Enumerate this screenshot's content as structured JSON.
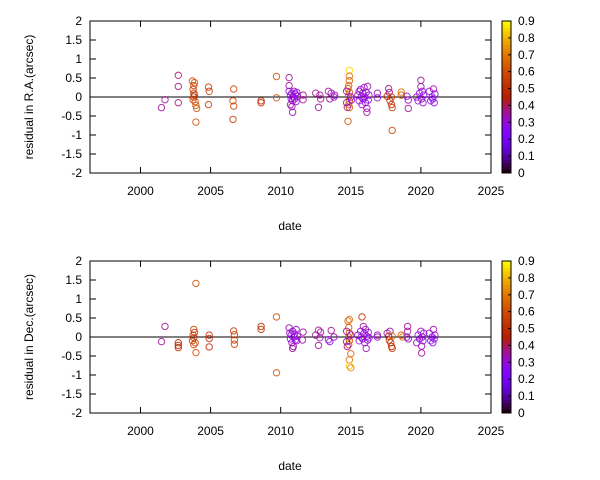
{
  "chart_data": [
    {
      "type": "scatter",
      "xlabel": "date",
      "ylabel": "residual in R.A.(arcsec)",
      "xlim": [
        1996.4,
        2025
      ],
      "ylim": [
        -2,
        2
      ],
      "xticks": [
        "2000",
        "2005",
        "2010",
        "2015",
        "2020",
        "2025"
      ],
      "yticks": [
        "-2",
        "-1.5",
        "-1",
        "-0.5",
        "0",
        "0.5",
        "1",
        "1.5",
        "2"
      ],
      "colorbar": {
        "range": [
          0,
          0.9
        ],
        "ticks": [
          "0",
          "0.1",
          "0.2",
          "0.3",
          "0.4",
          "0.5",
          "0.6",
          "0.7",
          "0.8",
          "0.9"
        ]
      },
      "zero_line": true,
      "marker": "open-circle",
      "points": [
        [
          2001.5,
          -0.28,
          0.36
        ],
        [
          2001.75,
          -0.07,
          0.36
        ],
        [
          2002.7,
          0.57,
          0.38
        ],
        [
          2002.7,
          0.28,
          0.38
        ],
        [
          2002.7,
          -0.15,
          0.38
        ],
        [
          2003.7,
          0.42,
          0.6
        ],
        [
          2003.85,
          0.38,
          0.6
        ],
        [
          2003.8,
          0.3,
          0.58
        ],
        [
          2003.75,
          0.2,
          0.55
        ],
        [
          2003.8,
          0.1,
          0.55
        ],
        [
          2003.85,
          0.05,
          0.52
        ],
        [
          2003.8,
          0.0,
          0.5
        ],
        [
          2003.75,
          -0.07,
          0.55
        ],
        [
          2003.9,
          -0.12,
          0.58
        ],
        [
          2003.95,
          -0.22,
          0.62
        ],
        [
          2004.0,
          -0.3,
          0.62
        ],
        [
          2003.95,
          -0.66,
          0.62
        ],
        [
          2004.85,
          0.26,
          0.55
        ],
        [
          2004.9,
          0.15,
          0.55
        ],
        [
          2004.85,
          -0.2,
          0.55
        ],
        [
          2006.65,
          0.21,
          0.58
        ],
        [
          2006.6,
          -0.1,
          0.58
        ],
        [
          2006.65,
          -0.24,
          0.58
        ],
        [
          2006.6,
          -0.59,
          0.56
        ],
        [
          2008.6,
          -0.1,
          0.48
        ],
        [
          2008.6,
          -0.15,
          0.48
        ],
        [
          2009.7,
          0.54,
          0.6
        ],
        [
          2009.7,
          -0.02,
          0.6
        ],
        [
          2010.6,
          0.51,
          0.36
        ],
        [
          2010.6,
          0.3,
          0.36
        ],
        [
          2010.6,
          0.15,
          0.32
        ],
        [
          2010.7,
          0.05,
          0.3
        ],
        [
          2010.75,
          -0.05,
          0.3
        ],
        [
          2010.8,
          0.1,
          0.3
        ],
        [
          2010.85,
          -0.1,
          0.32
        ],
        [
          2010.9,
          0.0,
          0.3
        ],
        [
          2010.95,
          0.15,
          0.3
        ],
        [
          2011.0,
          -0.05,
          0.3
        ],
        [
          2011.05,
          0.08,
          0.3
        ],
        [
          2011.1,
          -0.12,
          0.32
        ],
        [
          2011.2,
          0.02,
          0.3
        ],
        [
          2010.7,
          -0.2,
          0.34
        ],
        [
          2010.8,
          -0.25,
          0.34
        ],
        [
          2010.85,
          -0.4,
          0.32
        ],
        [
          2011.15,
          0.12,
          0.3
        ],
        [
          2011.6,
          0.05,
          0.36
        ],
        [
          2011.6,
          -0.07,
          0.36
        ],
        [
          2012.5,
          0.1,
          0.36
        ],
        [
          2012.7,
          -0.27,
          0.36
        ],
        [
          2012.8,
          0.05,
          0.36
        ],
        [
          2012.85,
          -0.05,
          0.36
        ],
        [
          2013.4,
          0.15,
          0.36
        ],
        [
          2013.5,
          -0.05,
          0.36
        ],
        [
          2013.6,
          0.1,
          0.34
        ],
        [
          2013.8,
          0.0,
          0.32
        ],
        [
          2013.85,
          0.05,
          0.3
        ],
        [
          2014.9,
          0.7,
          0.85
        ],
        [
          2014.9,
          0.55,
          0.68
        ],
        [
          2014.9,
          0.43,
          0.65
        ],
        [
          2014.85,
          0.3,
          0.65
        ],
        [
          2014.8,
          0.22,
          0.62
        ],
        [
          2014.9,
          0.12,
          0.62
        ],
        [
          2014.85,
          0.02,
          0.6
        ],
        [
          2014.9,
          -0.1,
          0.62
        ],
        [
          2014.85,
          -0.2,
          0.65
        ],
        [
          2014.9,
          -0.28,
          0.65
        ],
        [
          2014.8,
          -0.64,
          0.62
        ],
        [
          2014.7,
          0.15,
          0.36
        ],
        [
          2014.7,
          -0.15,
          0.36
        ],
        [
          2014.75,
          -0.27,
          0.36
        ],
        [
          2015.0,
          0.0,
          0.3
        ],
        [
          2015.05,
          -0.08,
          0.3
        ],
        [
          2015.5,
          0.05,
          0.32
        ],
        [
          2015.6,
          -0.1,
          0.3
        ],
        [
          2015.7,
          0.2,
          0.32
        ],
        [
          2015.75,
          0.0,
          0.3
        ],
        [
          2015.8,
          -0.2,
          0.3
        ],
        [
          2015.85,
          0.1,
          0.3
        ],
        [
          2015.9,
          -0.05,
          0.3
        ],
        [
          2015.95,
          0.25,
          0.32
        ],
        [
          2016.0,
          0.0,
          0.3
        ],
        [
          2016.05,
          -0.15,
          0.3
        ],
        [
          2016.1,
          0.12,
          0.3
        ],
        [
          2016.15,
          -0.3,
          0.34
        ],
        [
          2016.15,
          -0.4,
          0.36
        ],
        [
          2016.2,
          0.28,
          0.34
        ],
        [
          2016.25,
          -0.08,
          0.3
        ],
        [
          2016.3,
          0.05,
          0.3
        ],
        [
          2015.6,
          0.15,
          0.32
        ],
        [
          2016.9,
          0.1,
          0.34
        ],
        [
          2016.9,
          -0.02,
          0.32
        ],
        [
          2017.6,
          0.02,
          0.45
        ],
        [
          2017.7,
          0.22,
          0.36
        ],
        [
          2017.75,
          0.12,
          0.36
        ],
        [
          2017.8,
          -0.1,
          0.45
        ],
        [
          2017.9,
          -0.2,
          0.5
        ],
        [
          2017.95,
          -0.28,
          0.55
        ],
        [
          2017.95,
          -0.88,
          0.58
        ],
        [
          2017.9,
          0.0,
          0.6
        ],
        [
          2018.6,
          0.13,
          0.68
        ],
        [
          2018.6,
          0.05,
          0.62
        ],
        [
          2019.0,
          0.02,
          0.3
        ],
        [
          2019.1,
          -0.08,
          0.32
        ],
        [
          2019.1,
          -0.3,
          0.36
        ],
        [
          2019.7,
          0.0,
          0.32
        ],
        [
          2019.8,
          -0.1,
          0.3
        ],
        [
          2019.9,
          0.1,
          0.3
        ],
        [
          2020.0,
          0.44,
          0.36
        ],
        [
          2020.0,
          0.27,
          0.34
        ],
        [
          2020.05,
          -0.05,
          0.3
        ],
        [
          2020.1,
          0.15,
          0.3
        ],
        [
          2020.15,
          -0.15,
          0.32
        ],
        [
          2020.2,
          0.05,
          0.3
        ],
        [
          2020.6,
          0.15,
          0.32
        ],
        [
          2020.7,
          -0.1,
          0.28
        ],
        [
          2020.8,
          0.0,
          0.28
        ],
        [
          2020.9,
          0.21,
          0.34
        ],
        [
          2020.95,
          -0.15,
          0.28
        ],
        [
          2021.0,
          0.08,
          0.3
        ],
        [
          2020.85,
          -0.05,
          0.26
        ]
      ]
    },
    {
      "type": "scatter",
      "xlabel": "date",
      "ylabel": "residual in Dec.(arcsec)",
      "xlim": [
        1996.4,
        2025
      ],
      "ylim": [
        -2,
        2
      ],
      "xticks": [
        "2000",
        "2005",
        "2010",
        "2015",
        "2020",
        "2025"
      ],
      "yticks": [
        "-2",
        "-1.5",
        "-1",
        "-0.5",
        "0",
        "0.5",
        "1",
        "1.5",
        "2"
      ],
      "colorbar": {
        "range": [
          0,
          0.9
        ],
        "ticks": [
          "0",
          "0.1",
          "0.2",
          "0.3",
          "0.4",
          "0.5",
          "0.6",
          "0.7",
          "0.8",
          "0.9"
        ]
      },
      "zero_line": true,
      "marker": "open-circle",
      "points": [
        [
          2001.5,
          -0.12,
          0.36
        ],
        [
          2001.75,
          0.28,
          0.36
        ],
        [
          2002.7,
          -0.15,
          0.48
        ],
        [
          2002.7,
          -0.22,
          0.48
        ],
        [
          2002.7,
          -0.28,
          0.48
        ],
        [
          2003.95,
          1.41,
          0.62
        ],
        [
          2003.8,
          0.2,
          0.58
        ],
        [
          2003.85,
          0.12,
          0.55
        ],
        [
          2003.75,
          0.05,
          0.55
        ],
        [
          2003.8,
          -0.02,
          0.5
        ],
        [
          2003.7,
          -0.1,
          0.52
        ],
        [
          2003.9,
          -0.15,
          0.58
        ],
        [
          2003.8,
          -0.2,
          0.6
        ],
        [
          2003.95,
          -0.41,
          0.62
        ],
        [
          2004.9,
          0.05,
          0.5
        ],
        [
          2004.9,
          -0.04,
          0.5
        ],
        [
          2004.9,
          -0.26,
          0.5
        ],
        [
          2006.65,
          0.16,
          0.55
        ],
        [
          2006.7,
          0.06,
          0.55
        ],
        [
          2006.7,
          -0.08,
          0.55
        ],
        [
          2006.7,
          -0.19,
          0.55
        ],
        [
          2008.6,
          0.28,
          0.5
        ],
        [
          2008.6,
          0.2,
          0.5
        ],
        [
          2009.7,
          0.53,
          0.6
        ],
        [
          2009.7,
          -0.94,
          0.6
        ],
        [
          2010.6,
          0.24,
          0.34
        ],
        [
          2010.65,
          0.1,
          0.32
        ],
        [
          2010.7,
          -0.05,
          0.3
        ],
        [
          2010.75,
          0.05,
          0.3
        ],
        [
          2010.8,
          -0.15,
          0.32
        ],
        [
          2010.85,
          0.15,
          0.3
        ],
        [
          2010.9,
          -0.25,
          0.34
        ],
        [
          2010.95,
          0.0,
          0.3
        ],
        [
          2011.0,
          0.08,
          0.3
        ],
        [
          2011.05,
          -0.08,
          0.3
        ],
        [
          2011.1,
          0.2,
          0.32
        ],
        [
          2011.15,
          -0.1,
          0.3
        ],
        [
          2011.2,
          0.02,
          0.3
        ],
        [
          2010.85,
          -0.3,
          0.36
        ],
        [
          2011.6,
          0.13,
          0.36
        ],
        [
          2011.55,
          -0.08,
          0.36
        ],
        [
          2012.5,
          0.05,
          0.36
        ],
        [
          2012.7,
          0.18,
          0.36
        ],
        [
          2012.7,
          -0.22,
          0.36
        ],
        [
          2012.85,
          0.13,
          0.36
        ],
        [
          2012.8,
          -0.02,
          0.34
        ],
        [
          2013.4,
          -0.07,
          0.3
        ],
        [
          2013.5,
          -0.12,
          0.3
        ],
        [
          2013.6,
          0.17,
          0.36
        ],
        [
          2013.8,
          0.0,
          0.32
        ],
        [
          2014.8,
          0.42,
          0.65
        ],
        [
          2014.9,
          0.46,
          0.68
        ],
        [
          2014.85,
          0.25,
          0.62
        ],
        [
          2014.9,
          0.1,
          0.6
        ],
        [
          2014.85,
          0.0,
          0.6
        ],
        [
          2014.9,
          -0.1,
          0.62
        ],
        [
          2014.85,
          -0.2,
          0.62
        ],
        [
          2015.0,
          -0.44,
          0.65
        ],
        [
          2014.9,
          -0.6,
          0.68
        ],
        [
          2014.9,
          -0.76,
          0.82
        ],
        [
          2015.0,
          -0.81,
          0.72
        ],
        [
          2014.7,
          0.15,
          0.36
        ],
        [
          2014.7,
          -0.12,
          0.36
        ],
        [
          2014.75,
          -0.25,
          0.36
        ],
        [
          2015.0,
          0.05,
          0.3
        ],
        [
          2015.8,
          0.53,
          0.52
        ],
        [
          2015.9,
          0.28,
          0.36
        ],
        [
          2015.5,
          0.05,
          0.32
        ],
        [
          2015.6,
          -0.1,
          0.3
        ],
        [
          2015.7,
          0.15,
          0.32
        ],
        [
          2015.75,
          0.0,
          0.3
        ],
        [
          2015.85,
          -0.05,
          0.3
        ],
        [
          2015.95,
          0.1,
          0.3
        ],
        [
          2016.0,
          -0.15,
          0.3
        ],
        [
          2016.05,
          0.2,
          0.32
        ],
        [
          2016.1,
          -0.3,
          0.34
        ],
        [
          2016.15,
          0.02,
          0.3
        ],
        [
          2016.2,
          -0.08,
          0.3
        ],
        [
          2016.25,
          0.12,
          0.3
        ],
        [
          2016.3,
          -0.02,
          0.3
        ],
        [
          2016.9,
          0.0,
          0.32
        ],
        [
          2016.9,
          0.05,
          0.34
        ],
        [
          2017.6,
          0.1,
          0.36
        ],
        [
          2017.7,
          0.02,
          0.45
        ],
        [
          2017.75,
          -0.08,
          0.5
        ],
        [
          2017.8,
          0.15,
          0.36
        ],
        [
          2017.85,
          -0.15,
          0.5
        ],
        [
          2017.9,
          -0.25,
          0.5
        ],
        [
          2017.95,
          -0.3,
          0.55
        ],
        [
          2017.95,
          0.02,
          0.68
        ],
        [
          2018.7,
          0.0,
          0.68
        ],
        [
          2018.6,
          0.05,
          0.62
        ],
        [
          2019.05,
          0.28,
          0.36
        ],
        [
          2019.05,
          0.15,
          0.36
        ],
        [
          2019.0,
          0.0,
          0.3
        ],
        [
          2019.1,
          -0.05,
          0.32
        ],
        [
          2019.7,
          -0.15,
          0.32
        ],
        [
          2019.8,
          0.05,
          0.3
        ],
        [
          2019.9,
          -0.05,
          0.3
        ],
        [
          2020.0,
          0.15,
          0.34
        ],
        [
          2020.05,
          -0.24,
          0.34
        ],
        [
          2020.05,
          -0.42,
          0.36
        ],
        [
          2020.1,
          0.0,
          0.3
        ],
        [
          2020.15,
          -0.1,
          0.3
        ],
        [
          2020.2,
          0.1,
          0.3
        ],
        [
          2020.6,
          0.1,
          0.3
        ],
        [
          2020.7,
          -0.1,
          0.28
        ],
        [
          2020.8,
          0.0,
          0.28
        ],
        [
          2020.9,
          0.2,
          0.34
        ],
        [
          2020.95,
          -0.05,
          0.28
        ],
        [
          2021.0,
          0.05,
          0.3
        ],
        [
          2020.85,
          -0.15,
          0.3
        ]
      ]
    }
  ]
}
